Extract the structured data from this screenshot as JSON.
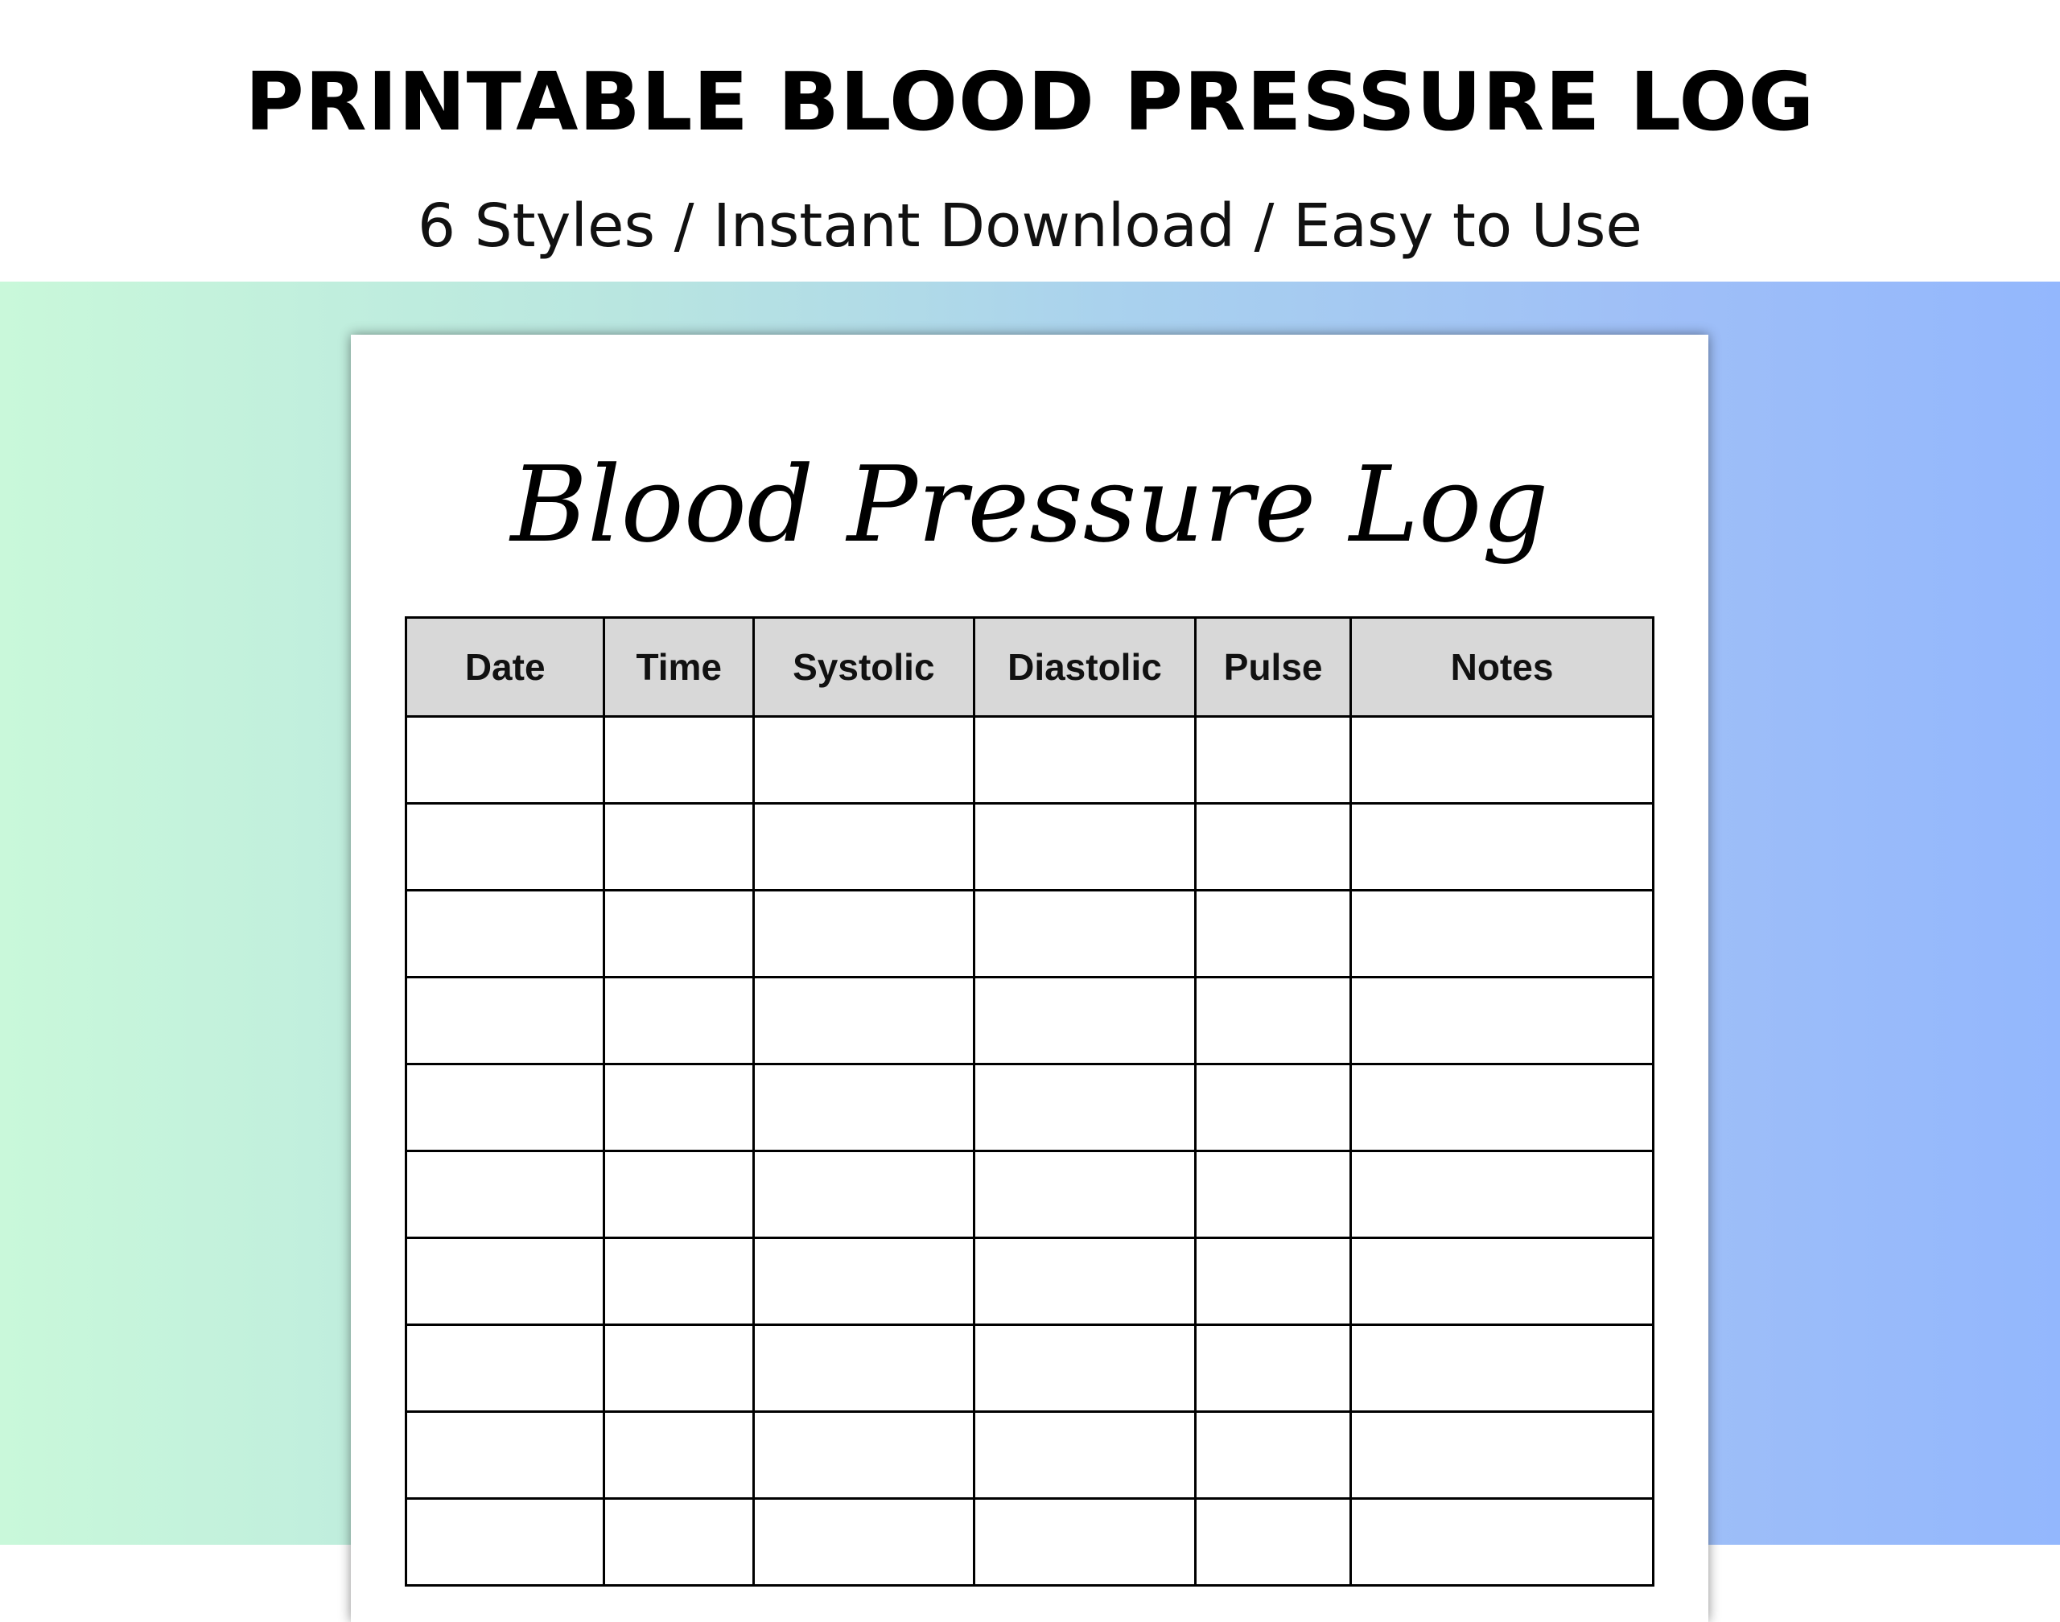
{
  "header": {
    "title": "PRINTABLE BLOOD PRESSURE LOG",
    "subtitle": "6 Styles / Instant Download / Easy to Use"
  },
  "document": {
    "title": "Blood Pressure Log",
    "columns": [
      "Date",
      "Time",
      "Systolic",
      "Diastolic",
      "Pulse",
      "Notes"
    ],
    "empty_rows": 10
  },
  "colors": {
    "gradient_left": "#c9f8da",
    "gradient_right": "#93b7fd",
    "header_fill": "#d8d8d8"
  }
}
